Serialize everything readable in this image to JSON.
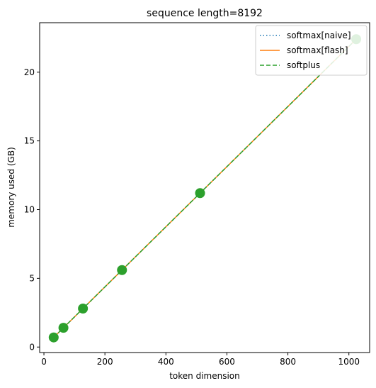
{
  "chart_data": {
    "type": "line",
    "title": "sequence length=8192",
    "xlabel": "token dimension",
    "ylabel": "memory used (GB)",
    "xlim": [
      -14,
      1068
    ],
    "ylim": [
      -0.4,
      23.6
    ],
    "xticks": [
      0,
      200,
      400,
      600,
      800,
      1000
    ],
    "yticks": [
      0,
      5,
      10,
      15,
      20
    ],
    "grid": false,
    "legend_position": "top-right",
    "series": [
      {
        "name": "softmax[naive]",
        "style": "dotted",
        "color": "#1f77b4",
        "x": [
          32,
          64,
          128,
          256,
          512,
          1024
        ],
        "y": [
          0.7,
          1.4,
          2.8,
          5.6,
          11.2,
          22.4
        ]
      },
      {
        "name": "softmax[flash]",
        "style": "solid",
        "color": "#ff7f0e",
        "x": [
          32,
          64,
          128,
          256,
          512,
          1024
        ],
        "y": [
          0.7,
          1.4,
          2.8,
          5.6,
          11.2,
          22.4
        ]
      },
      {
        "name": "softplus",
        "style": "dashed",
        "color": "#2ca02c",
        "x": [
          32,
          64,
          128,
          256,
          512,
          1024
        ],
        "y": [
          0.7,
          1.4,
          2.8,
          5.6,
          11.2,
          22.4
        ]
      }
    ],
    "markers": {
      "color": "#2ca02c",
      "x": [
        32,
        64,
        128,
        256,
        512,
        1024
      ],
      "y": [
        0.7,
        1.4,
        2.8,
        5.6,
        11.2,
        22.4
      ]
    }
  }
}
